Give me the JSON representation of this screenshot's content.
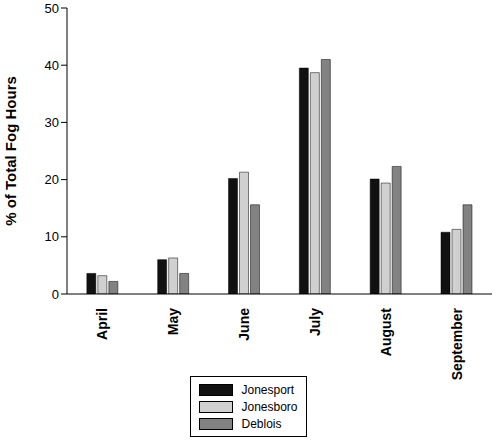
{
  "chart_data": {
    "type": "bar",
    "y_label": "% of Total Fog Hours",
    "categories": [
      "April",
      "May",
      "June",
      "July",
      "August",
      "September"
    ],
    "series": [
      {
        "name": "Jonesport",
        "color": "#111111",
        "values": [
          3.6,
          6.0,
          20.2,
          39.5,
          20.1,
          10.8
        ]
      },
      {
        "name": "Jonesboro",
        "color": "#d0d0d0",
        "values": [
          3.2,
          6.3,
          21.3,
          38.7,
          19.4,
          11.3
        ]
      },
      {
        "name": "Deblois",
        "color": "#828282",
        "values": [
          2.2,
          3.6,
          15.6,
          41.0,
          22.3,
          15.6
        ]
      }
    ],
    "ylim": [
      0,
      50
    ],
    "yticks": [
      0,
      10,
      20,
      30,
      40,
      50
    ],
    "grid": false,
    "legend": "bottom"
  }
}
